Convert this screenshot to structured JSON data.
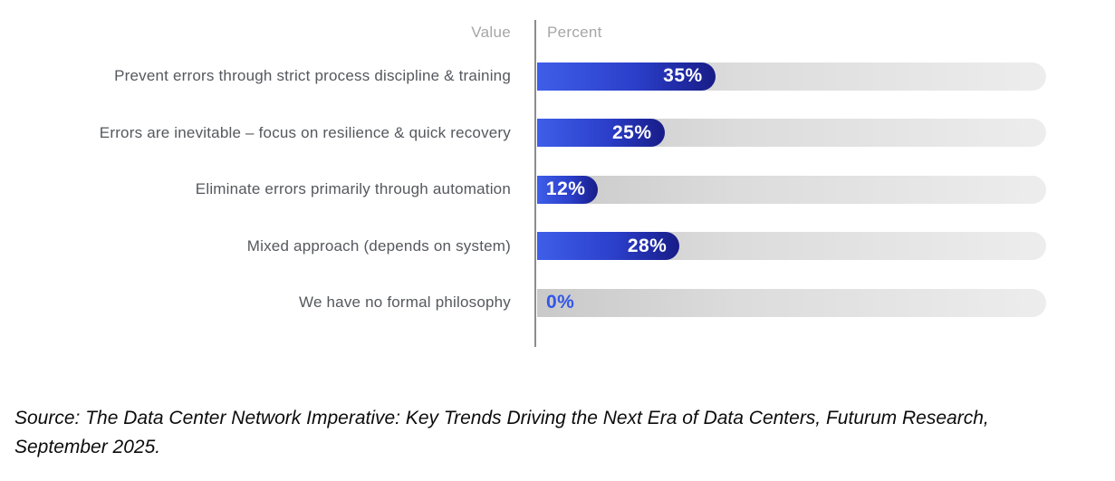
{
  "chart": {
    "columns": {
      "value": "Value",
      "percent": "Percent"
    }
  },
  "chart_data": {
    "type": "bar",
    "orientation": "horizontal",
    "title": "",
    "column_headers": [
      "Value",
      "Percent"
    ],
    "categories": [
      "Prevent errors through strict process discipline & training",
      "Errors are inevitable – focus on resilience & quick recovery",
      "Eliminate errors primarily through automation",
      "Mixed approach (depends on system)",
      "We have no formal philosophy"
    ],
    "values": [
      35,
      25,
      12,
      28,
      0
    ],
    "value_suffix": "%",
    "xlim": [
      0,
      100
    ],
    "grid": false,
    "legend": false
  },
  "source_note": "Source: The Data Center Network Imperative: Key Trends Driving the Next Era of Data Centers, Futurum Research, September 2025.",
  "colors": {
    "bar_gradient_start": "#3e5ee9",
    "bar_gradient_mid": "#2b3fca",
    "bar_gradient_end": "#181c87",
    "track_gradient_start": "#c9c9c9",
    "track_gradient_end": "#ededed",
    "zero_value_label": "#3356e8",
    "bar_value_label": "#ffffff",
    "category_label": "#55585d",
    "column_header": "#a6a6a6",
    "axis_divider": "#8d8d8d"
  }
}
